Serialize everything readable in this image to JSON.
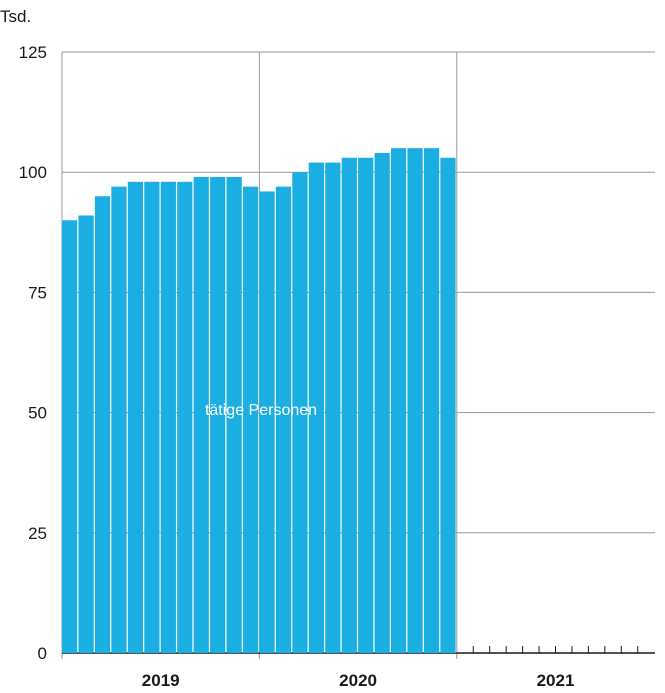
{
  "chart_data": {
    "type": "bar",
    "unit_label": "Tsd.",
    "series_label": "tätige Personen",
    "bar_color": "#1aaee3",
    "years": [
      "2019",
      "2020",
      "2021"
    ],
    "months_per_year": 12,
    "ylim": [
      0,
      125
    ],
    "yticks": [
      0,
      25,
      50,
      75,
      100,
      125
    ],
    "ytick_labels": [
      "0",
      "25",
      "50",
      "75",
      "100",
      "125"
    ],
    "grid": true,
    "series": [
      {
        "values": [
          90,
          91,
          95,
          97,
          98,
          98,
          98,
          98,
          99,
          99,
          99,
          97,
          96,
          97,
          100,
          102,
          102,
          103,
          103,
          104,
          105,
          105,
          105,
          103
        ]
      }
    ]
  }
}
